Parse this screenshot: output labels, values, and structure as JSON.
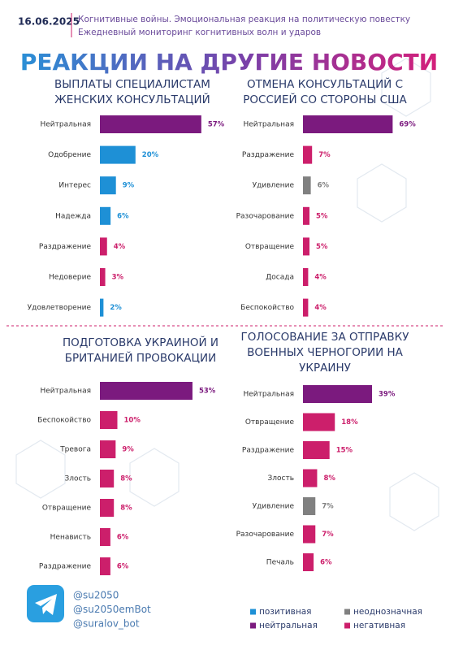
{
  "header": {
    "date": "16.06.2025",
    "lines": [
      "Когнитивные войны. Эмоциональная реакция на политическую повестку",
      "Ежедневный мониторинг когнитивных волн и ударов"
    ]
  },
  "title": "РЕАКЦИИ НА ДРУГИЕ НОВОСТИ",
  "chart_data": [
    {
      "type": "bar",
      "title": [
        "ВЫПЛАТЫ СПЕЦИАЛИСТАМ",
        "ЖЕНСКИХ КОНСУЛЬТАЦИЙ"
      ],
      "categories": [
        "Нейтральная",
        "Одобрение",
        "Интерес",
        "Надежда",
        "Раздражение",
        "Недоверие",
        "Удовлетворение"
      ],
      "values": [
        57,
        20,
        9,
        6,
        4,
        3,
        2
      ],
      "value_labels": [
        "57%",
        "20%",
        "9%",
        "6%",
        "4%",
        "3%",
        "2%"
      ],
      "colors": [
        "#7b1a7e",
        "#1e90d6",
        "#1e90d6",
        "#1e90d6",
        "#cc1f6b",
        "#cc1f6b",
        "#1e90d6"
      ]
    },
    {
      "type": "bar",
      "title": [
        "ОТМЕНА КОНСУЛЬТАЦИЙ С",
        "РОССИЕЙ СО СТОРОНЫ США"
      ],
      "categories": [
        "Нейтральная",
        "Раздражение",
        "Удивление",
        "Разочарование",
        "Отвращение",
        "Досада",
        "Беспокойство"
      ],
      "values": [
        69,
        7,
        6,
        5,
        5,
        4,
        4
      ],
      "value_labels": [
        "69%",
        "7%",
        "6%",
        "5%",
        "5%",
        "4%",
        "4%"
      ],
      "colors": [
        "#7b1a7e",
        "#cc1f6b",
        "#808080",
        "#cc1f6b",
        "#cc1f6b",
        "#cc1f6b",
        "#cc1f6b"
      ]
    },
    {
      "type": "bar",
      "title": [
        "ПОДГОТОВКА УКРАИНОЙ И",
        "БРИТАНИЕЙ ПРОВОКАЦИИ"
      ],
      "categories": [
        "Нейтральная",
        "Беспокойство",
        "Тревога",
        "Злость",
        "Отвращение",
        "Ненависть",
        "Раздражение"
      ],
      "values": [
        53,
        10,
        9,
        8,
        8,
        6,
        6
      ],
      "value_labels": [
        "53%",
        "10%",
        "9%",
        "8%",
        "8%",
        "6%",
        "6%"
      ],
      "colors": [
        "#7b1a7e",
        "#cc1f6b",
        "#cc1f6b",
        "#cc1f6b",
        "#cc1f6b",
        "#cc1f6b",
        "#cc1f6b"
      ]
    },
    {
      "type": "bar",
      "title": [
        "ГОЛОСОВАНИЕ ЗА ОТПРАВКУ",
        "ВОЕННЫХ ЧЕРНОГОРИИ НА",
        "УКРАИНУ"
      ],
      "categories": [
        "Нейтральная",
        "Отвращение",
        "Раздражение",
        "Злость",
        "Удивление",
        "Разочарование",
        "Печаль"
      ],
      "values": [
        39,
        18,
        15,
        8,
        7,
        7,
        6
      ],
      "value_labels": [
        "39%",
        "18%",
        "15%",
        "8%",
        "7%",
        "7%",
        "6%"
      ],
      "colors": [
        "#7b1a7e",
        "#cc1f6b",
        "#cc1f6b",
        "#cc1f6b",
        "#808080",
        "#cc1f6b",
        "#cc1f6b"
      ]
    }
  ],
  "footer": {
    "handles": [
      "@su2050",
      "@su2050emBot",
      "@suralov_bot"
    ]
  },
  "legend": [
    {
      "label": "позитивная",
      "color": "#1e90d6"
    },
    {
      "label": "неоднозначная",
      "color": "#808080"
    },
    {
      "label": "нейтральная",
      "color": "#7b1a7e"
    },
    {
      "label": "негативная",
      "color": "#cc1f6b"
    }
  ]
}
